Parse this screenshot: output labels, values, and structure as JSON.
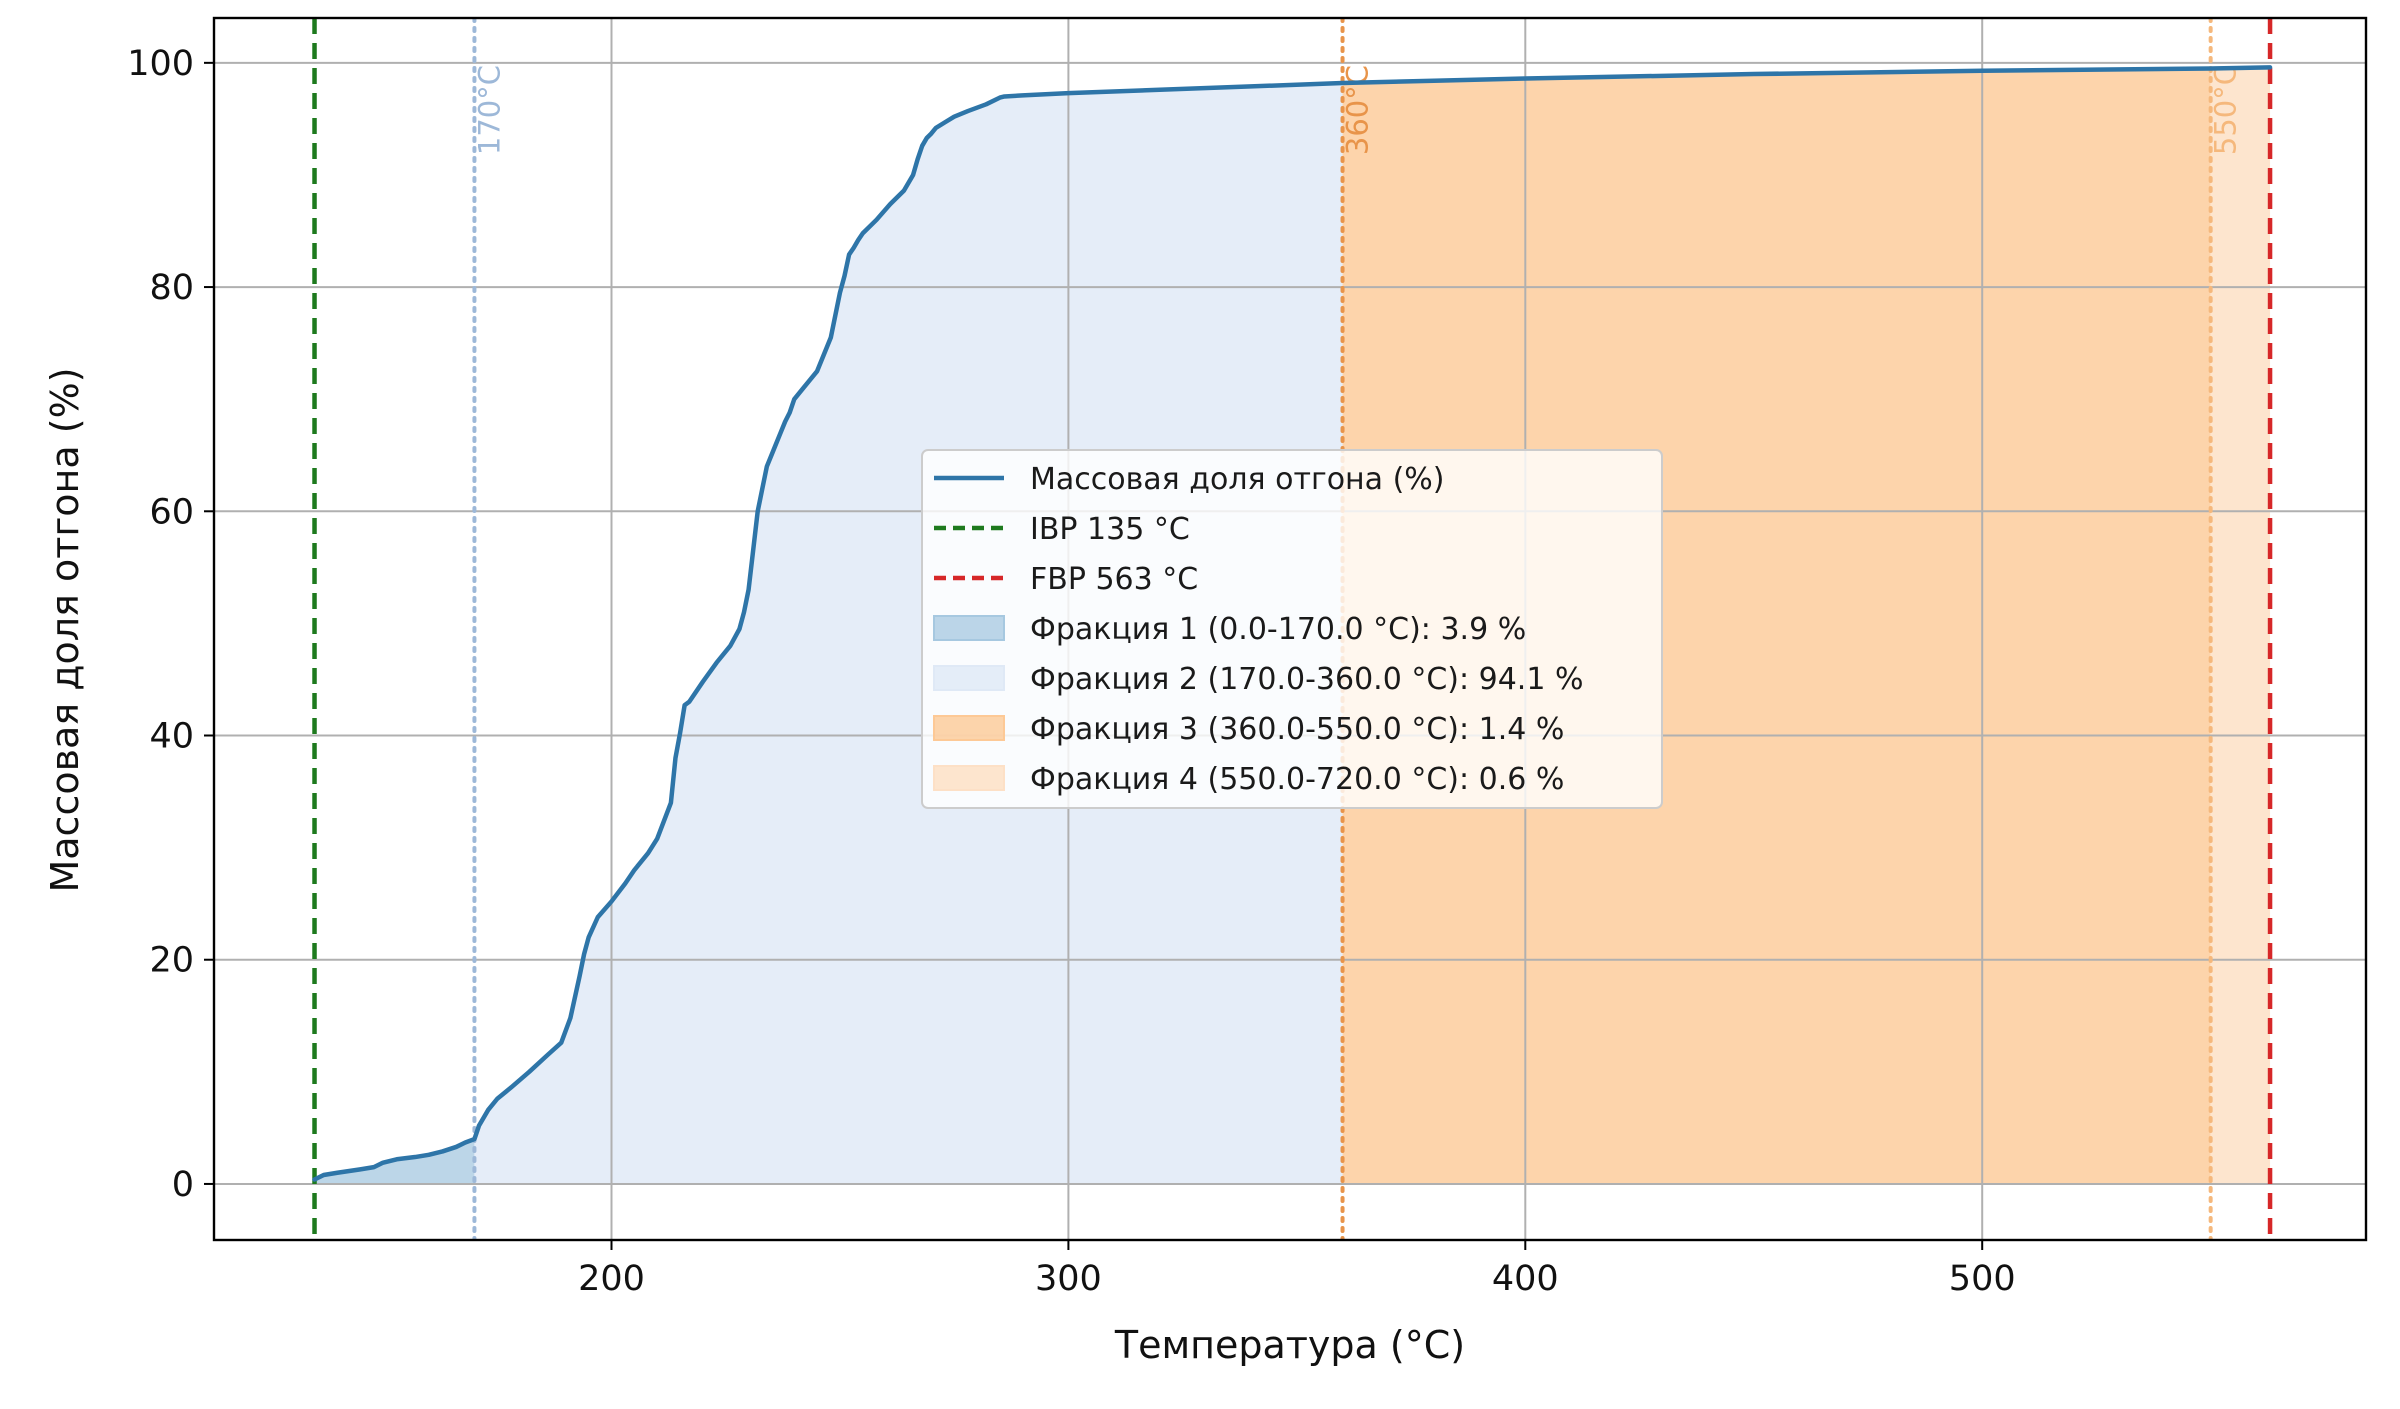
{
  "chart_data": {
    "type": "line",
    "title": "",
    "xlabel": "Температура (°C)",
    "ylabel": "Массовая доля отгона (%)",
    "xlim": [
      113,
      584
    ],
    "ylim": [
      -5,
      104
    ],
    "xticks": [
      200,
      300,
      400,
      500
    ],
    "yticks": [
      0,
      20,
      40,
      60,
      80,
      100
    ],
    "grid": true,
    "legend_position": "center",
    "colors": {
      "curve": "#2e75a8",
      "ibp": "#1e7a1e",
      "fbp": "#d62728",
      "grid": "#b0b0b0",
      "fraction1": "#a6c8e0",
      "fraction2": "#dfe9f6",
      "fraction3": "#fdc996",
      "fraction4": "#fde0c6",
      "cut170": "#9db8d8",
      "cut360": "#e8944a",
      "cut550": "#f5b87c"
    },
    "series": [
      {
        "name": "Массовая доля отгона (%)",
        "x": [
          135,
          137,
          140,
          145,
          148,
          150,
          153,
          157,
          160,
          163,
          166,
          168,
          170,
          171,
          173,
          175,
          178,
          182,
          186,
          189,
          191,
          193,
          194,
          195,
          197,
          200,
          203,
          205,
          208,
          210,
          213,
          214,
          215,
          216,
          217,
          220,
          223,
          226,
          228,
          229,
          230,
          231,
          232,
          233,
          234,
          235,
          236,
          237,
          238,
          239,
          240,
          242,
          245,
          248,
          250,
          251,
          252,
          253,
          254,
          255,
          258,
          261,
          264,
          266,
          267,
          268,
          269,
          270,
          271,
          273,
          275,
          278,
          282,
          285,
          286,
          290,
          300,
          320,
          340,
          360,
          380,
          400,
          450,
          500,
          550,
          563
        ],
        "y": [
          0.4,
          0.8,
          1.0,
          1.3,
          1.5,
          1.9,
          2.2,
          2.4,
          2.6,
          2.9,
          3.3,
          3.7,
          4.0,
          5.2,
          6.6,
          7.6,
          8.6,
          10.0,
          11.5,
          12.6,
          14.8,
          18.5,
          20.5,
          22.0,
          23.8,
          25.2,
          26.8,
          28.0,
          29.5,
          30.8,
          34.0,
          38.0,
          40.2,
          42.7,
          43.0,
          44.8,
          46.5,
          48.0,
          49.5,
          51.0,
          53.0,
          56.5,
          60.0,
          62.0,
          64.0,
          65.0,
          66.0,
          67.0,
          68.0,
          68.8,
          70.0,
          71.0,
          72.5,
          75.5,
          79.5,
          81.0,
          82.9,
          83.5,
          84.2,
          84.8,
          86.0,
          87.4,
          88.6,
          90.0,
          91.4,
          92.6,
          93.3,
          93.7,
          94.2,
          94.7,
          95.2,
          95.7,
          96.3,
          96.9,
          97.0,
          97.1,
          97.3,
          97.6,
          97.9,
          98.2,
          98.4,
          98.6,
          99.0,
          99.3,
          99.5,
          99.6
        ]
      }
    ],
    "vertical_lines": [
      {
        "name": "IBP 135 °C",
        "x": 135,
        "style": "dashed",
        "color": "#1e7a1e"
      },
      {
        "name": "FBP 563 °C",
        "x": 563,
        "style": "dashed",
        "color": "#d62728"
      }
    ],
    "cut_lines": [
      {
        "label": "170°C",
        "x": 170,
        "color": "#9db8d8"
      },
      {
        "label": "360°C",
        "x": 360,
        "color": "#e8944a"
      },
      {
        "label": "550°C",
        "x": 550,
        "color": "#f5b87c"
      }
    ],
    "fractions": [
      {
        "name": "Фракция 1 (0.0-170.0 °C): 3.9 %",
        "x0": 0.0,
        "x1": 170.0,
        "percent": 3.9,
        "fill": "curve",
        "color": "#a6c8e0",
        "opacity": 0.75
      },
      {
        "name": "Фракция 2 (170.0-360.0 °C): 94.1 %",
        "x0": 170.0,
        "x1": 360.0,
        "percent": 94.1,
        "fill": "curve",
        "color": "#dfe9f6",
        "opacity": 0.8
      },
      {
        "name": "Фракция 3 (360.0-550.0 °C): 1.4 %",
        "x0": 360.0,
        "x1": 550.0,
        "percent": 1.4,
        "fill": "curve",
        "color": "#fdc996",
        "opacity": 0.8
      },
      {
        "name": "Фракция 4 (550.0-720.0 °C): 0.6 %",
        "x0": 550.0,
        "x1": 720.0,
        "percent": 0.6,
        "fill": "curve",
        "color": "#fde0c6",
        "opacity": 0.85
      }
    ]
  }
}
